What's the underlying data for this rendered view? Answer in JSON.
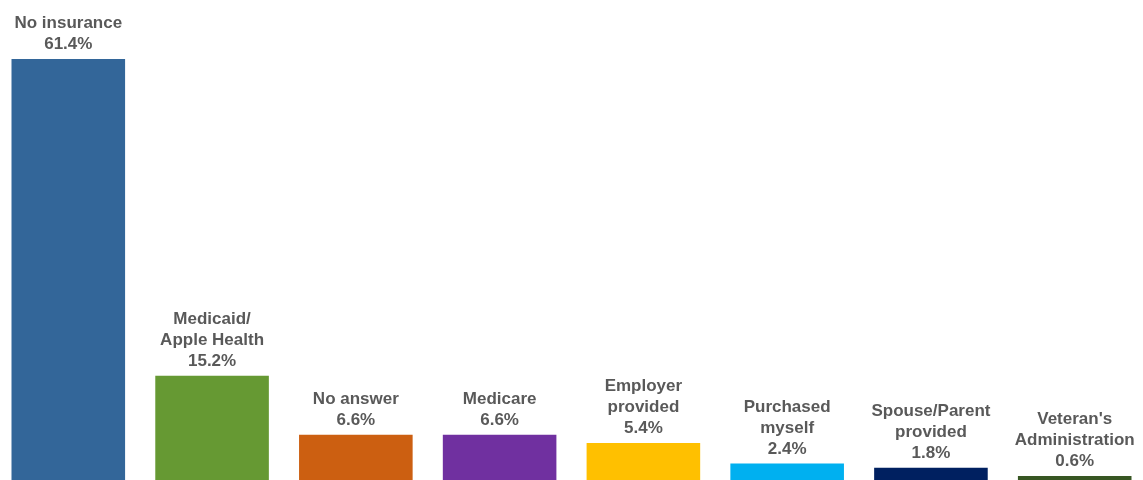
{
  "chart_data": {
    "type": "bar",
    "categories": [
      "No insurance",
      "Medicaid/ Apple Health",
      "No answer",
      "Medicare",
      "Employer provided",
      "Purchased myself",
      "Spouse/Parent provided",
      "Veteran's Administration"
    ],
    "values": [
      61.4,
      15.2,
      6.6,
      6.6,
      5.4,
      2.4,
      1.8,
      0.6
    ],
    "value_labels": [
      "61.4%",
      "15.2%",
      "6.6%",
      "6.6%",
      "5.4%",
      "2.4%",
      "1.8%",
      "0.6%"
    ],
    "colors": [
      "#336699",
      "#669933",
      "#cc5f11",
      "#7030a0",
      "#ffc000",
      "#00b0f0",
      "#002060",
      "#375623"
    ]
  }
}
